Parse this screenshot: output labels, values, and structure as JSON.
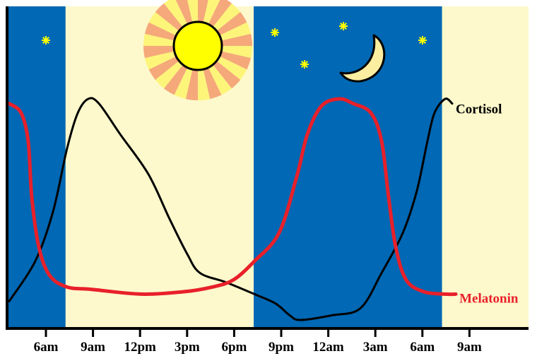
{
  "chart_data": {
    "type": "line",
    "title": "",
    "xlabel": "",
    "ylabel": "",
    "x_unit": "hours (clock time, continuing past midnight)",
    "xlim": [
      3.5,
      36.8
    ],
    "ylim": [
      0,
      100
    ],
    "grid": false,
    "ticks": [
      {
        "hour": 6,
        "label": "6am"
      },
      {
        "hour": 9,
        "label": "9am"
      },
      {
        "hour": 12,
        "label": "12pm"
      },
      {
        "hour": 15,
        "label": "3pm"
      },
      {
        "hour": 18,
        "label": "6pm"
      },
      {
        "hour": 21,
        "label": "9pm"
      },
      {
        "hour": 24,
        "label": "12am"
      },
      {
        "hour": 27,
        "label": "3am"
      },
      {
        "hour": 30,
        "label": "6am"
      },
      {
        "hour": 33,
        "label": "9am"
      }
    ],
    "night_periods": [
      [
        3.5,
        7.25
      ],
      [
        19.25,
        31.25
      ]
    ],
    "series": [
      {
        "name": "Cortisol",
        "color": "#000000",
        "points": [
          [
            3.66,
            11
          ],
          [
            5.32,
            28
          ],
          [
            6.45,
            49
          ],
          [
            7.35,
            76
          ],
          [
            8.03,
            91
          ],
          [
            8.7,
            97
          ],
          [
            9.38,
            95
          ],
          [
            10.73,
            82
          ],
          [
            12.53,
            65
          ],
          [
            13.88,
            46
          ],
          [
            15.01,
            31
          ],
          [
            15.82,
            23
          ],
          [
            17.49,
            19
          ],
          [
            19.29,
            14
          ],
          [
            20.64,
            10
          ],
          [
            21.54,
            5
          ],
          [
            22.22,
            3
          ],
          [
            24.24,
            5
          ],
          [
            26.05,
            8
          ],
          [
            27.4,
            23
          ],
          [
            28.75,
            40
          ],
          [
            29.65,
            58
          ],
          [
            30.32,
            79
          ],
          [
            30.77,
            91
          ],
          [
            31.45,
            97
          ],
          [
            31.9,
            95
          ]
        ]
      },
      {
        "name": "Melatonin",
        "color": "#e8202a",
        "points": [
          [
            3.66,
            95
          ],
          [
            4.42,
            91
          ],
          [
            4.87,
            79
          ],
          [
            5.1,
            55
          ],
          [
            5.55,
            34
          ],
          [
            6.23,
            22
          ],
          [
            7.35,
            17
          ],
          [
            8.93,
            16
          ],
          [
            12.08,
            14
          ],
          [
            14.78,
            15
          ],
          [
            16.59,
            17
          ],
          [
            17.94,
            20
          ],
          [
            19.29,
            28
          ],
          [
            20.86,
            40
          ],
          [
            21.99,
            64
          ],
          [
            22.67,
            82
          ],
          [
            23.57,
            94
          ],
          [
            24.69,
            97
          ],
          [
            25.59,
            95
          ],
          [
            26.72,
            91
          ],
          [
            27.4,
            79
          ],
          [
            27.85,
            55
          ],
          [
            28.3,
            34
          ],
          [
            28.97,
            20
          ],
          [
            30.1,
            15
          ],
          [
            31.45,
            14
          ],
          [
            32.13,
            14
          ]
        ]
      }
    ]
  },
  "colors": {
    "night": "#0068b4",
    "day": "#fdf9cc",
    "sun": "#ffff00",
    "sun_ray_a": "#f5a87a",
    "sun_ray_b": "#fdf57a",
    "moon": "#fbeea0",
    "star": "#ffff00"
  },
  "icons": {
    "sun": "sun-icon",
    "moon": "crescent-moon-icon",
    "star": "star-icon"
  }
}
